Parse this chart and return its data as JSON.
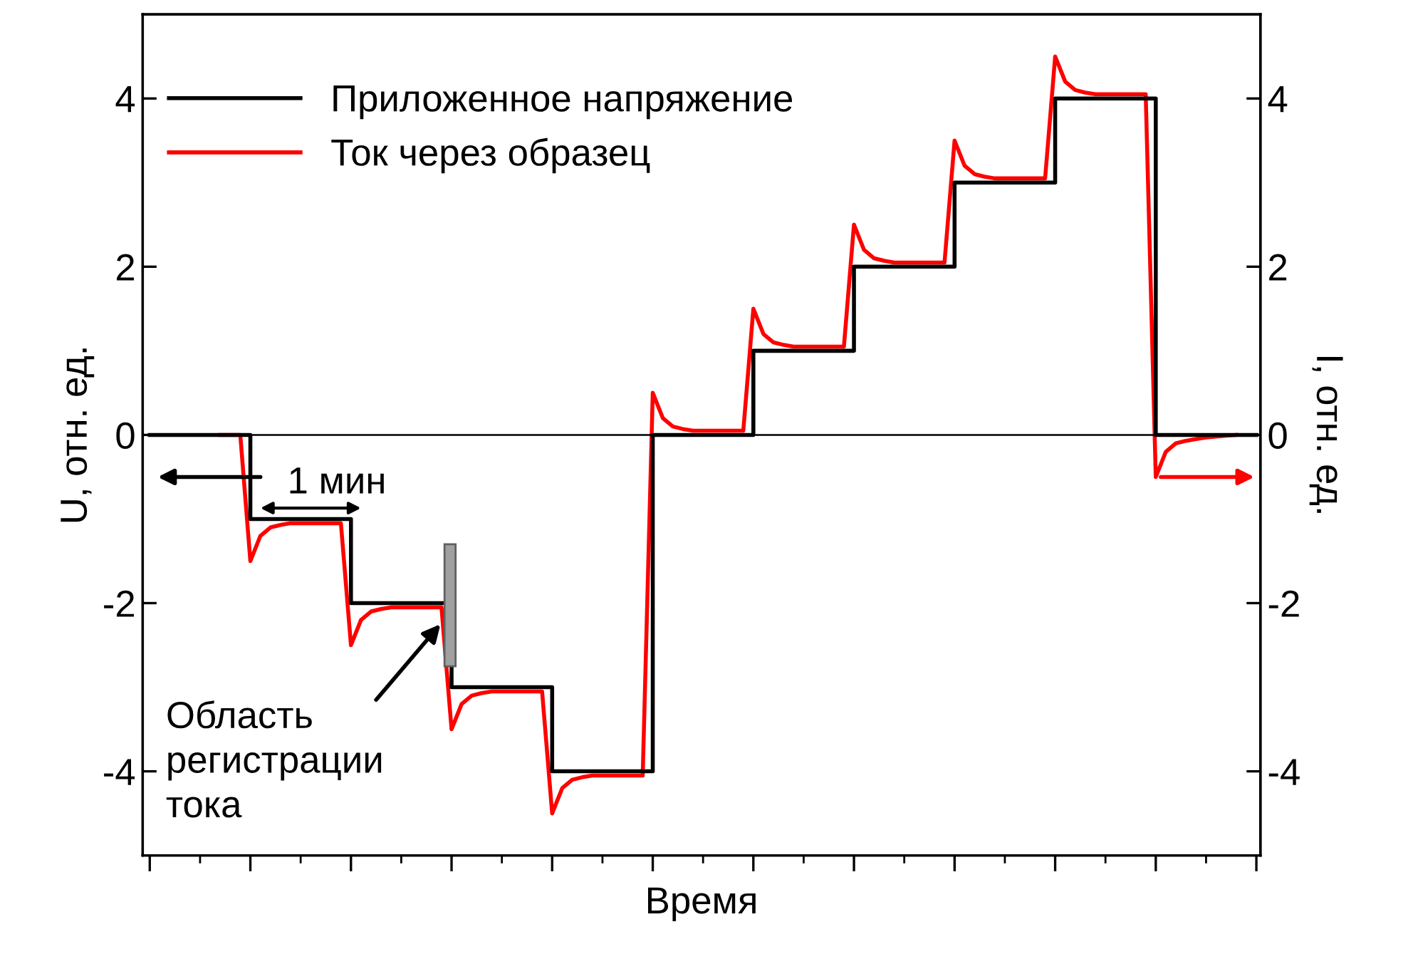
{
  "chart_data": {
    "type": "line",
    "xlabel": "Время",
    "ylabel": "U, отн. ед.",
    "y2label": "I, отн. ед.",
    "categories": [
      null,
      null,
      null,
      null,
      null,
      null,
      null,
      null,
      null,
      null,
      null,
      null,
      null,
      null,
      null,
      null,
      null,
      null,
      null,
      null,
      null,
      null,
      null,
      null,
      null,
      null,
      null,
      null,
      null,
      null,
      null,
      null,
      null,
      null,
      null,
      null,
      null,
      null,
      null,
      null,
      null,
      null,
      null,
      null,
      null,
      null,
      null,
      null,
      null,
      null,
      null,
      null,
      null,
      null,
      null,
      null,
      null,
      null,
      null,
      null,
      null,
      null,
      null,
      null,
      null,
      null,
      null,
      null,
      null,
      null,
      null,
      null,
      null,
      null,
      null,
      null,
      null,
      null,
      null,
      null,
      null,
      null,
      null,
      null,
      null,
      null,
      null,
      null,
      null,
      null,
      null,
      null,
      null,
      null,
      null,
      null,
      null,
      null,
      null,
      null,
      null,
      null,
      null,
      null,
      null,
      null,
      null,
      null,
      null,
      null,
      null
    ],
    "series": [
      {
        "name": "Приложенное напряжение",
        "type": "step",
        "color": "#000000",
        "values": [
          0,
          0,
          0,
          0,
          0,
          0,
          0,
          0,
          0,
          0,
          -1,
          -1,
          -1,
          -1,
          -1,
          -1,
          -1,
          -1,
          -1,
          -1,
          -2,
          -2,
          -2,
          -2,
          -2,
          -2,
          -2,
          -2,
          -2,
          -2,
          -3,
          -3,
          -3,
          -3,
          -3,
          -3,
          -3,
          -3,
          -3,
          -3,
          -4,
          -4,
          -4,
          -4,
          -4,
          -4,
          -4,
          -4,
          -4,
          -4,
          0,
          0,
          0,
          0,
          0,
          0,
          0,
          0,
          0,
          0,
          1,
          1,
          1,
          1,
          1,
          1,
          1,
          1,
          1,
          1,
          2,
          2,
          2,
          2,
          2,
          2,
          2,
          2,
          2,
          2,
          3,
          3,
          3,
          3,
          3,
          3,
          3,
          3,
          3,
          3,
          4,
          4,
          4,
          4,
          4,
          4,
          4,
          4,
          4,
          4,
          0,
          0,
          0,
          0,
          0,
          0,
          0,
          0,
          0,
          0,
          0
        ]
      },
      {
        "name": "Ток через образец",
        "axis": "y2",
        "color": "#ff0000",
        "values": [
          null,
          null,
          null,
          null,
          null,
          null,
          null,
          0,
          0,
          0,
          -1.5,
          -1.2,
          -1.1,
          -1.07,
          -1.05,
          -1.05,
          -1.05,
          -1.05,
          -1.05,
          -1.05,
          -2.5,
          -2.2,
          -2.1,
          -2.07,
          -2.05,
          -2.05,
          -2.05,
          -2.05,
          -2.05,
          -2.05,
          -3.5,
          -3.2,
          -3.1,
          -3.07,
          -3.05,
          -3.05,
          -3.05,
          -3.05,
          -3.05,
          -3.05,
          -4.5,
          -4.2,
          -4.1,
          -4.07,
          -4.05,
          -4.05,
          -4.05,
          -4.05,
          -4.05,
          -4.05,
          0.5,
          0.2,
          0.1,
          0.07,
          0.05,
          0.05,
          0.05,
          0.05,
          0.05,
          0.05,
          1.5,
          1.2,
          1.1,
          1.07,
          1.05,
          1.05,
          1.05,
          1.05,
          1.05,
          1.05,
          2.5,
          2.2,
          2.1,
          2.07,
          2.05,
          2.05,
          2.05,
          2.05,
          2.05,
          2.05,
          3.5,
          3.2,
          3.1,
          3.07,
          3.05,
          3.05,
          3.05,
          3.05,
          3.05,
          3.05,
          4.5,
          4.2,
          4.1,
          4.07,
          4.05,
          4.05,
          4.05,
          4.05,
          4.05,
          4.05,
          -0.5,
          -0.2,
          -0.1,
          -0.07,
          -0.05,
          -0.03,
          -0.02,
          -0.01,
          0,
          null,
          null
        ]
      }
    ],
    "ylim": [
      -5,
      5
    ],
    "yticks": [
      -4,
      -2,
      0,
      2,
      4
    ],
    "y2lim": [
      -5,
      5
    ],
    "y2ticks": [
      -4,
      -2,
      0,
      2,
      4
    ],
    "ref_lines": [
      {
        "axis": "y",
        "value": 0,
        "color": "#000000"
      }
    ],
    "annotations": [
      "1 мин",
      "Область\nрегистрации\nтока"
    ],
    "legend": "top left",
    "grid": false
  }
}
